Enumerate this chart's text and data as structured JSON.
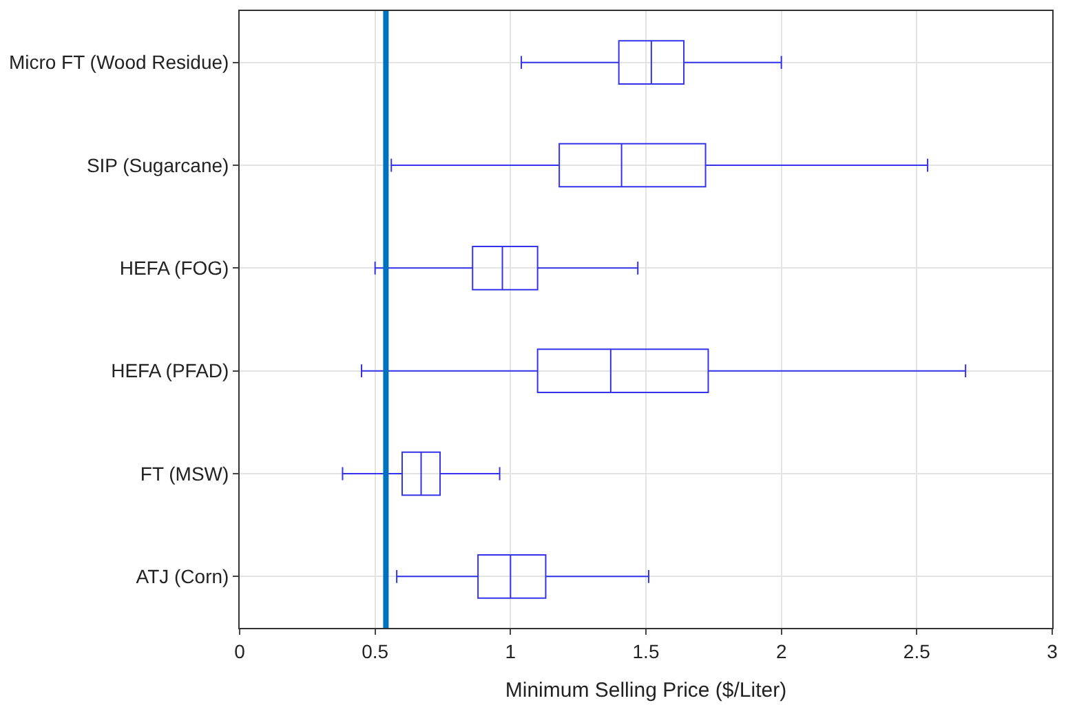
{
  "chart_data": {
    "type": "box",
    "orientation": "horizontal",
    "categories": [
      "Micro FT (Wood Residue)",
      "SIP (Sugarcane)",
      "HEFA (FOG)",
      "HEFA (PFAD)",
      "FT (MSW)",
      "ATJ (Corn)"
    ],
    "boxes": [
      {
        "low": 1.04,
        "q1": 1.4,
        "median": 1.52,
        "q3": 1.64,
        "high": 2.0
      },
      {
        "low": 0.56,
        "q1": 1.18,
        "median": 1.41,
        "q3": 1.72,
        "high": 2.54
      },
      {
        "low": 0.5,
        "q1": 0.86,
        "median": 0.97,
        "q3": 1.1,
        "high": 1.47
      },
      {
        "low": 0.45,
        "q1": 1.1,
        "median": 1.37,
        "q3": 1.73,
        "high": 2.68
      },
      {
        "low": 0.38,
        "q1": 0.6,
        "median": 0.67,
        "q3": 0.74,
        "high": 0.96
      },
      {
        "low": 0.58,
        "q1": 0.88,
        "median": 1.0,
        "q3": 1.13,
        "high": 1.51
      }
    ],
    "color": "#3333ee",
    "xlabel": "Minimum Selling Price ($/Liter)",
    "xlim": [
      0,
      3
    ],
    "xticks": [
      0,
      0.5,
      1,
      1.5,
      2,
      2.5,
      3
    ],
    "grid": true,
    "ref_lines": [
      {
        "axis": "x",
        "value": 0.54,
        "color": "#0072bd"
      }
    ]
  }
}
